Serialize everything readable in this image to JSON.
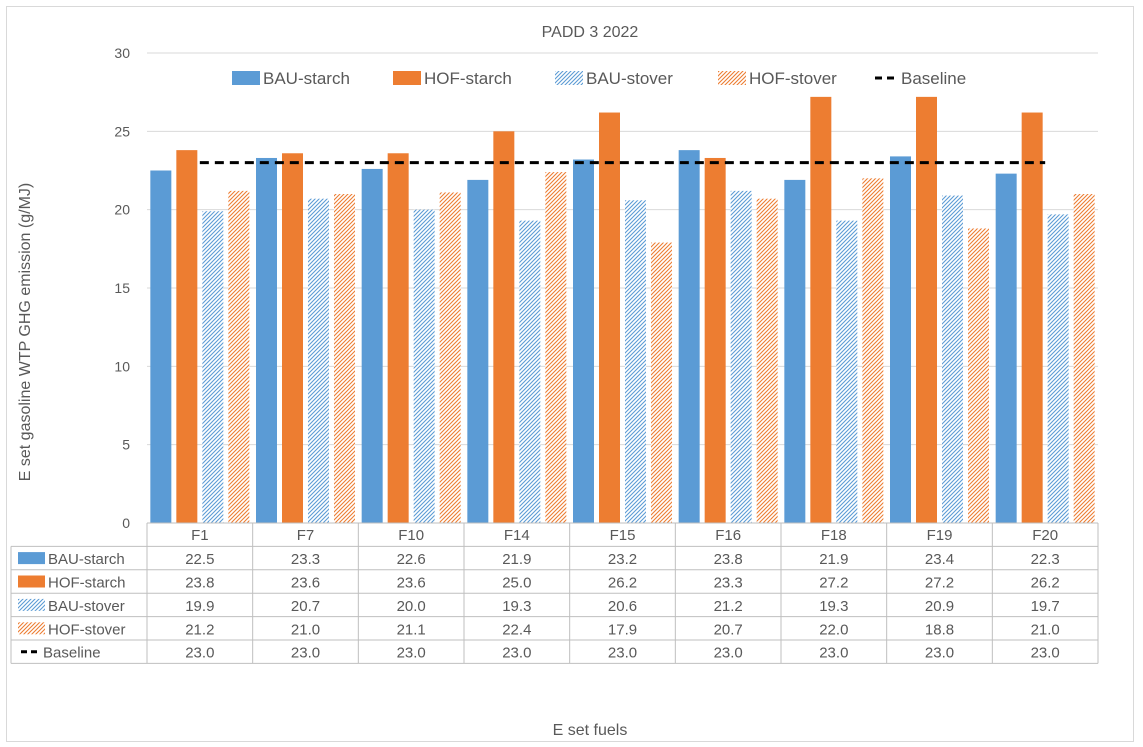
{
  "chart_data": {
    "type": "bar",
    "title": "PADD 3 2022",
    "xlabel": "E set fuels",
    "ylabel": "E set gasoline WTP GHG emission (g/MJ)",
    "ylim": [
      0,
      30
    ],
    "yticks": [
      0,
      5,
      10,
      15,
      20,
      25,
      30
    ],
    "grid": true,
    "legend_position": "top",
    "data_table": true,
    "categories": [
      "F1",
      "F7",
      "F10",
      "F14",
      "F15",
      "F16",
      "F18",
      "F19",
      "F20"
    ],
    "series": [
      {
        "name": "BAU-starch",
        "style": "solid",
        "color": "#5b9bd5",
        "values": [
          22.5,
          23.3,
          22.6,
          21.9,
          23.2,
          23.8,
          21.9,
          23.4,
          22.3
        ]
      },
      {
        "name": "HOF-starch",
        "style": "solid",
        "color": "#ed7d31",
        "values": [
          23.8,
          23.6,
          23.6,
          25.0,
          26.2,
          23.3,
          27.2,
          27.2,
          26.2
        ]
      },
      {
        "name": "BAU-stover",
        "style": "hatched",
        "color": "#5b9bd5",
        "values": [
          19.9,
          20.7,
          20.0,
          19.3,
          20.6,
          21.2,
          19.3,
          20.9,
          19.7
        ]
      },
      {
        "name": "HOF-stover",
        "style": "hatched",
        "color": "#ed7d31",
        "values": [
          21.2,
          21.0,
          21.1,
          22.4,
          17.9,
          20.7,
          22.0,
          18.8,
          21.0
        ]
      },
      {
        "name": "Baseline",
        "style": "dashed-line",
        "color": "#000000",
        "values": [
          23.0,
          23.0,
          23.0,
          23.0,
          23.0,
          23.0,
          23.0,
          23.0,
          23.0
        ]
      }
    ]
  }
}
